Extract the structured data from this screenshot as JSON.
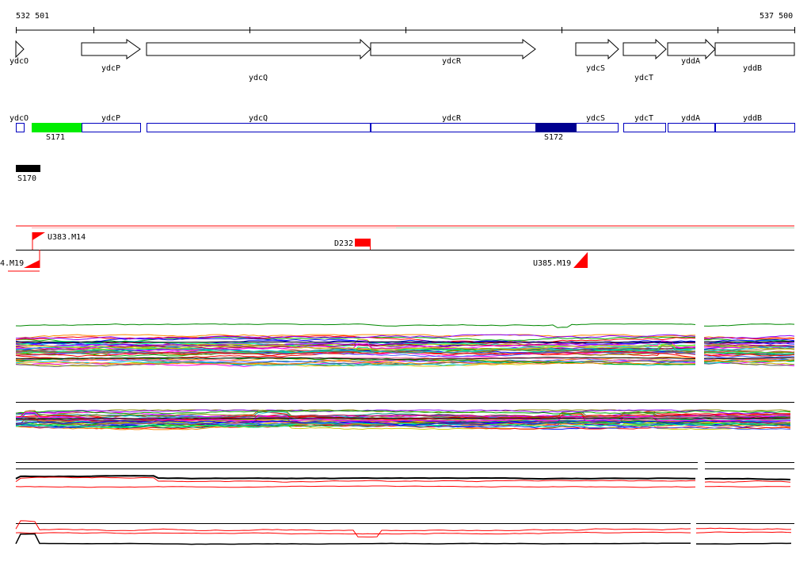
{
  "coords": {
    "start": "532 501",
    "end": "537 500"
  },
  "colors": {
    "gene_outline": "#000000",
    "operon_outline": "#0000c0",
    "segment_green": "#00ee00",
    "segment_navy": "#000090",
    "segment_black": "#000000",
    "red": "#ff0000",
    "green_trace": "#008800"
  },
  "genes": [
    {
      "name": "ydcO",
      "strand": "+"
    },
    {
      "name": "ydcP",
      "strand": "+"
    },
    {
      "name": "ydcQ",
      "strand": "+"
    },
    {
      "name": "ydcR",
      "strand": "+"
    },
    {
      "name": "ydcS",
      "strand": "+"
    },
    {
      "name": "ydcT",
      "strand": "+"
    },
    {
      "name": "yddA",
      "strand": "+"
    },
    {
      "name": "yddB",
      "strand": "+"
    }
  ],
  "operon_labels": [
    "ydcO",
    "ydcP",
    "ydcQ",
    "ydcR",
    "ydcS",
    "ydcT",
    "yddA",
    "yddB"
  ],
  "segments": {
    "green": "S171",
    "navy": "S172",
    "black": "S170"
  },
  "features": {
    "u383": "U383.M14",
    "d232": "D232",
    "u384": "4.M19",
    "u385": "U385.M19"
  },
  "trace_palette": [
    "#ff0000",
    "#00aa00",
    "#0000ff",
    "#ff00ff",
    "#00cccc",
    "#cccc00",
    "#ff8800",
    "#8800ff",
    "#008888",
    "#888800",
    "#aa0044",
    "#4466ff",
    "#00ff88",
    "#ff6699",
    "#996633",
    "#666666"
  ]
}
